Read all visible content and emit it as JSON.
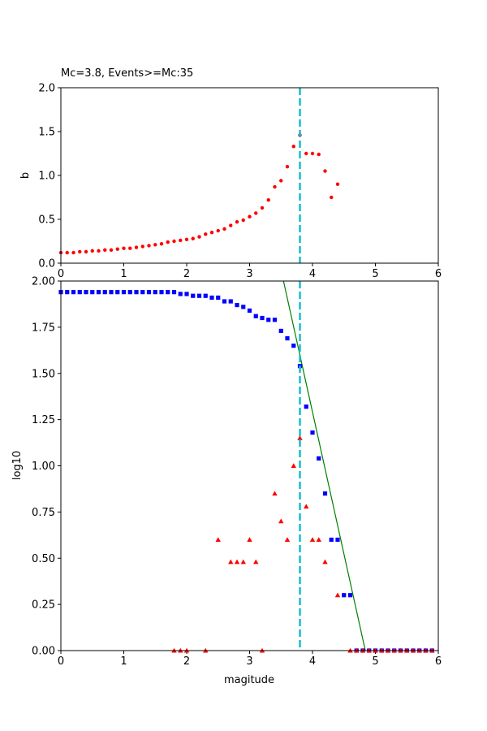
{
  "chart_data": [
    {
      "type": "scatter",
      "title": "Mc=3.8, Events>=Mc:35",
      "xlabel": "",
      "ylabel": "b",
      "xlim": [
        0,
        6
      ],
      "ylim": [
        0,
        2
      ],
      "xticks": [
        "0",
        "1",
        "2",
        "3",
        "4",
        "5",
        "6"
      ],
      "yticks": [
        "0.0",
        "0.5",
        "1.0",
        "1.5",
        "2.0"
      ],
      "grid": false,
      "mc_line": {
        "x": 3.8,
        "color": "#17becf"
      },
      "series": [
        {
          "marker": "circle",
          "color": "#ff0000",
          "points": [
            [
              0.0,
              0.12
            ],
            [
              0.1,
              0.12
            ],
            [
              0.2,
              0.12
            ],
            [
              0.3,
              0.13
            ],
            [
              0.4,
              0.13
            ],
            [
              0.5,
              0.14
            ],
            [
              0.6,
              0.14
            ],
            [
              0.7,
              0.15
            ],
            [
              0.8,
              0.15
            ],
            [
              0.9,
              0.16
            ],
            [
              1.0,
              0.17
            ],
            [
              1.1,
              0.17
            ],
            [
              1.2,
              0.18
            ],
            [
              1.3,
              0.19
            ],
            [
              1.4,
              0.2
            ],
            [
              1.5,
              0.21
            ],
            [
              1.6,
              0.22
            ],
            [
              1.7,
              0.24
            ],
            [
              1.8,
              0.25
            ],
            [
              1.9,
              0.26
            ],
            [
              2.0,
              0.27
            ],
            [
              2.1,
              0.28
            ],
            [
              2.2,
              0.3
            ],
            [
              2.3,
              0.33
            ],
            [
              2.4,
              0.35
            ],
            [
              2.5,
              0.37
            ],
            [
              2.6,
              0.39
            ],
            [
              2.7,
              0.43
            ],
            [
              2.8,
              0.47
            ],
            [
              2.9,
              0.49
            ],
            [
              3.0,
              0.53
            ],
            [
              3.1,
              0.57
            ],
            [
              3.2,
              0.63
            ],
            [
              3.3,
              0.72
            ],
            [
              3.4,
              0.87
            ],
            [
              3.5,
              0.94
            ],
            [
              3.6,
              1.1
            ],
            [
              3.7,
              1.33
            ],
            [
              3.8,
              1.46
            ],
            [
              3.9,
              1.25
            ],
            [
              4.0,
              1.25
            ],
            [
              4.1,
              1.24
            ],
            [
              4.2,
              1.05
            ],
            [
              4.3,
              0.75
            ],
            [
              4.4,
              0.9
            ]
          ]
        }
      ]
    },
    {
      "type": "scatter",
      "title": "",
      "xlabel": "magitude",
      "ylabel": "log10",
      "xlim": [
        0,
        6
      ],
      "ylim": [
        0,
        2
      ],
      "xticks": [
        "0",
        "1",
        "2",
        "3",
        "4",
        "5",
        "6"
      ],
      "yticks": [
        "0.00",
        "0.25",
        "0.50",
        "0.75",
        "1.00",
        "1.25",
        "1.50",
        "1.75",
        "2.00"
      ],
      "grid": false,
      "mc_line": {
        "x": 3.8,
        "color": "#17becf"
      },
      "fit_line": {
        "color": "#008000",
        "points": [
          [
            3.5,
            2.06
          ],
          [
            4.84,
            0.0
          ]
        ]
      },
      "series": [
        {
          "marker": "square",
          "color": "#0000ff",
          "points": [
            [
              0.0,
              1.94
            ],
            [
              0.1,
              1.94
            ],
            [
              0.2,
              1.94
            ],
            [
              0.3,
              1.94
            ],
            [
              0.4,
              1.94
            ],
            [
              0.5,
              1.94
            ],
            [
              0.6,
              1.94
            ],
            [
              0.7,
              1.94
            ],
            [
              0.8,
              1.94
            ],
            [
              0.9,
              1.94
            ],
            [
              1.0,
              1.94
            ],
            [
              1.1,
              1.94
            ],
            [
              1.2,
              1.94
            ],
            [
              1.3,
              1.94
            ],
            [
              1.4,
              1.94
            ],
            [
              1.5,
              1.94
            ],
            [
              1.6,
              1.94
            ],
            [
              1.7,
              1.94
            ],
            [
              1.8,
              1.94
            ],
            [
              1.9,
              1.93
            ],
            [
              2.0,
              1.93
            ],
            [
              2.1,
              1.92
            ],
            [
              2.2,
              1.92
            ],
            [
              2.3,
              1.92
            ],
            [
              2.4,
              1.91
            ],
            [
              2.5,
              1.91
            ],
            [
              2.6,
              1.89
            ],
            [
              2.7,
              1.89
            ],
            [
              2.8,
              1.87
            ],
            [
              2.9,
              1.86
            ],
            [
              3.0,
              1.84
            ],
            [
              3.1,
              1.81
            ],
            [
              3.2,
              1.8
            ],
            [
              3.3,
              1.79
            ],
            [
              3.4,
              1.79
            ],
            [
              3.5,
              1.73
            ],
            [
              3.6,
              1.69
            ],
            [
              3.7,
              1.65
            ],
            [
              3.8,
              1.54
            ],
            [
              3.9,
              1.32
            ],
            [
              4.0,
              1.18
            ],
            [
              4.1,
              1.04
            ],
            [
              4.2,
              0.85
            ],
            [
              4.3,
              0.6
            ],
            [
              4.4,
              0.6
            ],
            [
              4.5,
              0.3
            ],
            [
              4.6,
              0.3
            ],
            [
              4.7,
              0.0
            ],
            [
              4.8,
              0.0
            ],
            [
              4.9,
              0.0
            ],
            [
              5.0,
              0.0
            ],
            [
              5.1,
              0.0
            ],
            [
              5.2,
              0.0
            ],
            [
              5.3,
              0.0
            ],
            [
              5.4,
              0.0
            ],
            [
              5.5,
              0.0
            ],
            [
              5.6,
              0.0
            ],
            [
              5.7,
              0.0
            ],
            [
              5.8,
              0.0
            ],
            [
              5.9,
              0.0
            ]
          ]
        },
        {
          "marker": "triangle",
          "color": "#ff0000",
          "points": [
            [
              1.8,
              0.0
            ],
            [
              1.9,
              0.0
            ],
            [
              2.0,
              0.0
            ],
            [
              2.3,
              0.0
            ],
            [
              2.5,
              0.6
            ],
            [
              2.7,
              0.48
            ],
            [
              2.8,
              0.48
            ],
            [
              2.9,
              0.48
            ],
            [
              3.0,
              0.6
            ],
            [
              3.1,
              0.48
            ],
            [
              3.2,
              0.0
            ],
            [
              3.4,
              0.85
            ],
            [
              3.5,
              0.7
            ],
            [
              3.6,
              0.6
            ],
            [
              3.7,
              1.0
            ],
            [
              3.8,
              1.15
            ],
            [
              3.9,
              0.78
            ],
            [
              4.0,
              0.6
            ],
            [
              4.1,
              0.6
            ],
            [
              4.2,
              0.48
            ],
            [
              4.4,
              0.3
            ],
            [
              4.6,
              0.0
            ],
            [
              4.7,
              0.0
            ],
            [
              4.8,
              0.0
            ],
            [
              4.9,
              0.0
            ],
            [
              5.0,
              0.0
            ],
            [
              5.1,
              0.0
            ],
            [
              5.2,
              0.0
            ],
            [
              5.3,
              0.0
            ],
            [
              5.4,
              0.0
            ],
            [
              5.5,
              0.0
            ],
            [
              5.6,
              0.0
            ],
            [
              5.7,
              0.0
            ],
            [
              5.8,
              0.0
            ],
            [
              5.9,
              0.0
            ]
          ]
        }
      ]
    }
  ]
}
